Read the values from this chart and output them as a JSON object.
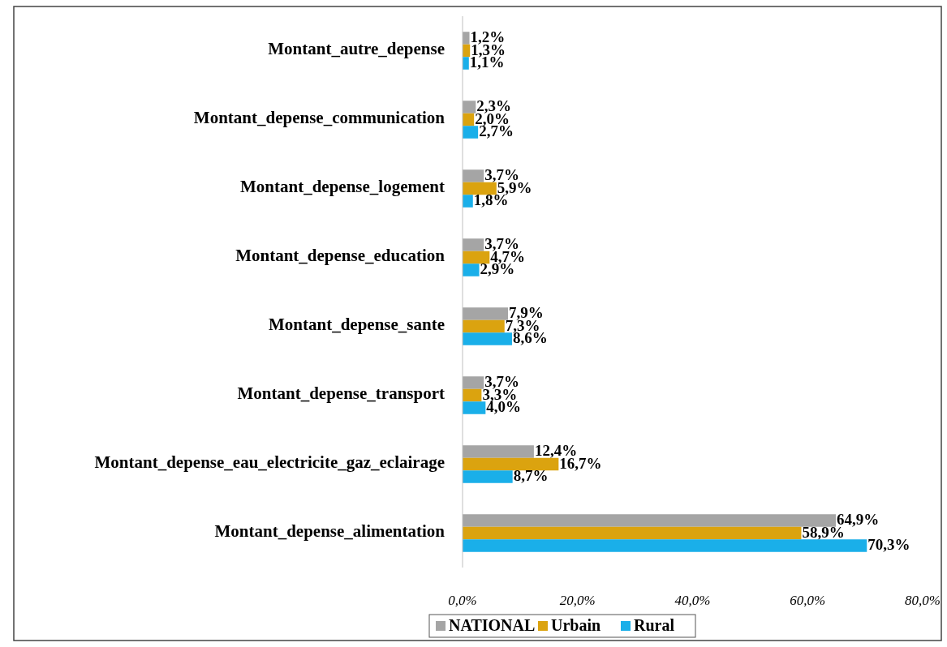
{
  "chart_data": {
    "type": "bar",
    "orientation": "horizontal",
    "categories": [
      "Montant_autre_depense",
      "Montant_depense_communication",
      "Montant_depense_logement",
      "Montant_depense_education",
      "Montant_depense_sante",
      "Montant_depense_transport",
      "Montant_depense_eau_electricite_gaz_eclairage",
      "Montant_depense_alimentation"
    ],
    "series": [
      {
        "name": "NATIONAL",
        "color": "#a5a5a5",
        "values": [
          1.2,
          2.3,
          3.7,
          3.7,
          7.9,
          3.7,
          12.4,
          64.9
        ],
        "value_labels": [
          "1,2%",
          "2,3%",
          "3,7%",
          "3,7%",
          "7,9%",
          "3,7%",
          "12,4%",
          "64,9%"
        ]
      },
      {
        "name": "Urbain",
        "color": "#dba30f",
        "values": [
          1.3,
          2.0,
          5.9,
          4.7,
          7.3,
          3.3,
          16.7,
          58.9
        ],
        "value_labels": [
          "1,3%",
          "2,0%",
          "5,9%",
          "4,7%",
          "7,3%",
          "3,3%",
          "16,7%",
          "58,9%"
        ]
      },
      {
        "name": "Rural",
        "color": "#1aafe9",
        "values": [
          1.1,
          2.7,
          1.8,
          2.9,
          8.6,
          4.0,
          8.7,
          70.3
        ],
        "value_labels": [
          "1,1%",
          "2,7%",
          "1,8%",
          "2,9%",
          "8,6%",
          "4,0%",
          "8,7%",
          "70,3%"
        ]
      }
    ],
    "xlim": [
      0,
      80
    ],
    "xticks": [
      {
        "value": 0,
        "label": "0,0%"
      },
      {
        "value": 20,
        "label": "20,0%"
      },
      {
        "value": 40,
        "label": "40,0%"
      },
      {
        "value": 60,
        "label": "60,0%"
      },
      {
        "value": 80,
        "label": "80,0%"
      }
    ],
    "grid": false,
    "legend": "bottom"
  }
}
